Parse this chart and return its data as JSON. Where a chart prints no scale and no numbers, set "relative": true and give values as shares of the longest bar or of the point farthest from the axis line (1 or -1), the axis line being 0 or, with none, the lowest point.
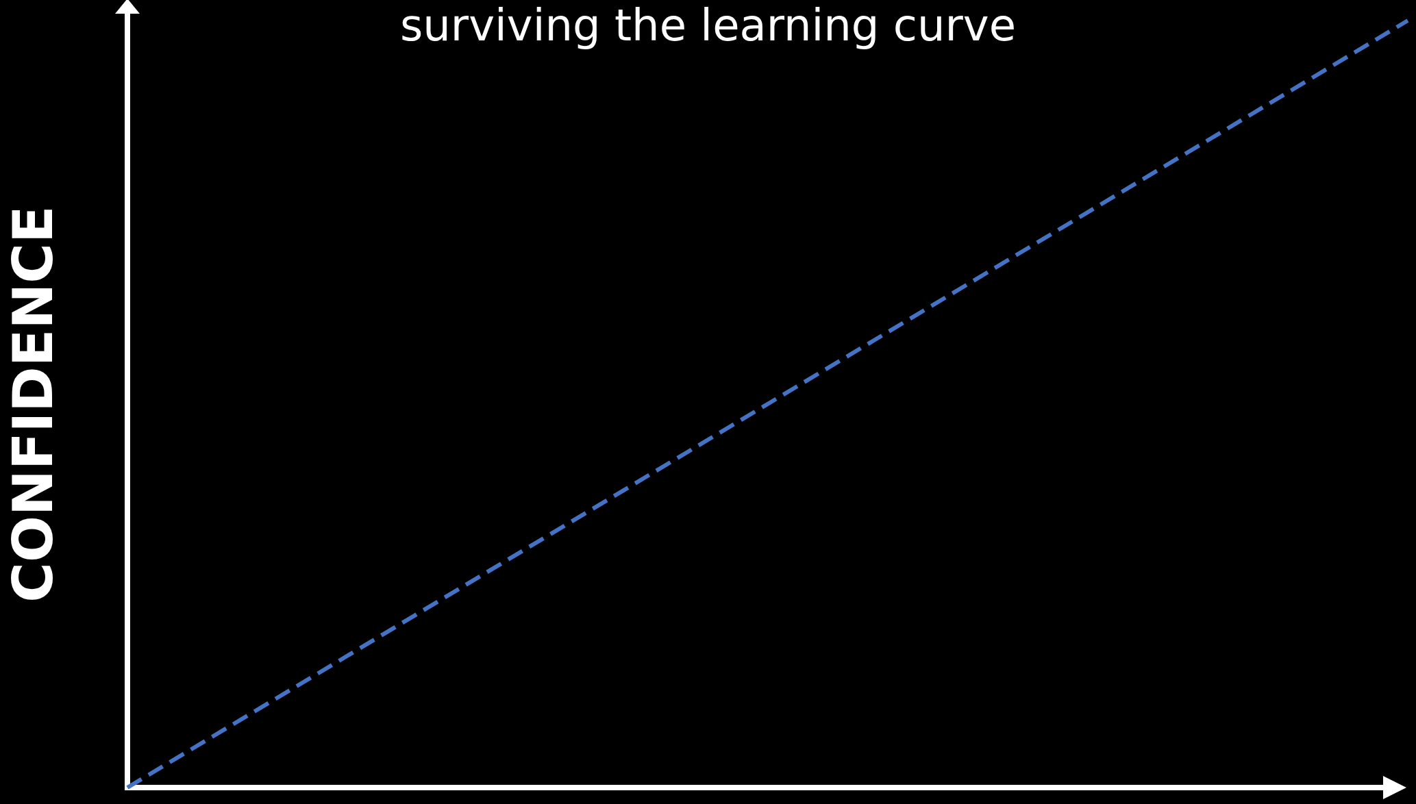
{
  "chart_data": {
    "type": "line",
    "title": "surviving the learning curve",
    "ylabel": "CONFIDENCE",
    "categories": [
      null,
      null
    ],
    "relative": true,
    "series": [
      {
        "color": "#4472c4",
        "values": [
          0,
          1
        ]
      }
    ],
    "line_style": "dashed",
    "marker": "none",
    "grid": false
  }
}
